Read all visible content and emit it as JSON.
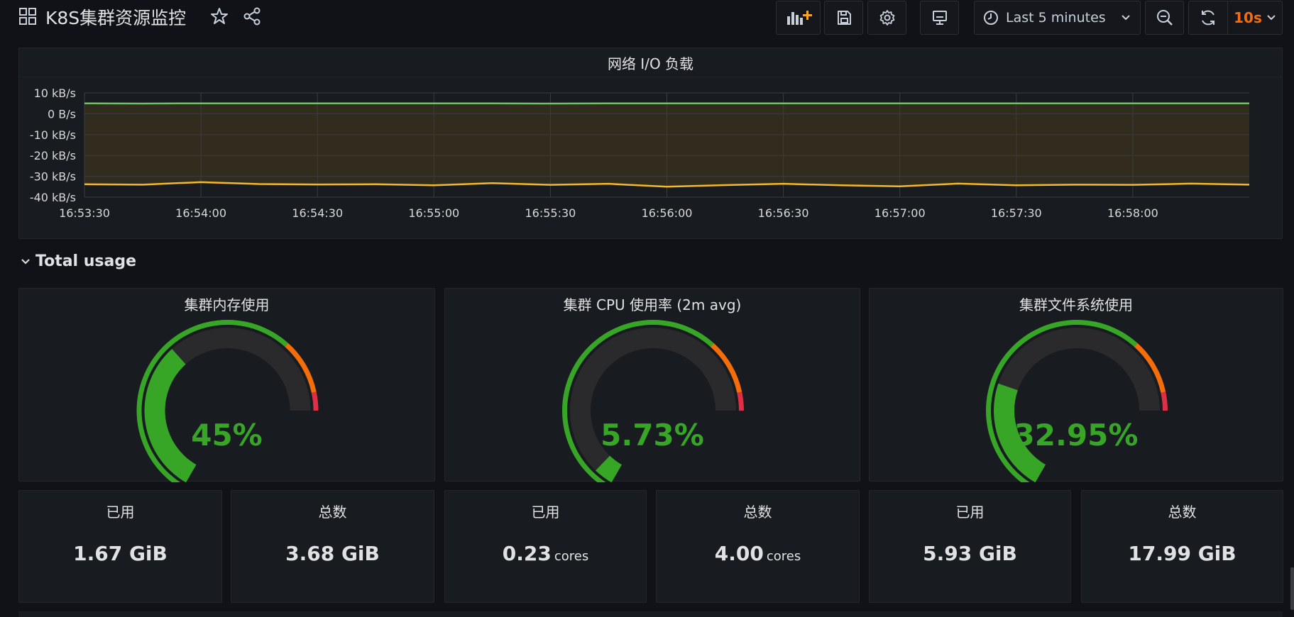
{
  "header": {
    "title": "K8S集群资源监控",
    "time_range": "Last 5 minutes",
    "refresh_interval": "10s"
  },
  "network_panel": {
    "title": "网络 I/O 负载"
  },
  "row": {
    "title": "Total usage"
  },
  "gauges": [
    {
      "title": "集群内存使用",
      "display": "45%",
      "percent": 45
    },
    {
      "title": "集群 CPU 使用率 (2m avg)",
      "display": "5.73%",
      "percent": 5.73
    },
    {
      "title": "集群文件系统使用",
      "display": "32.95%",
      "percent": 32.95
    }
  ],
  "stats": [
    {
      "label": "已用",
      "value": "1.67",
      "unit": "GiB"
    },
    {
      "label": "总数",
      "value": "3.68",
      "unit": "GiB"
    },
    {
      "label": "已用",
      "value": "0.23",
      "unit": "cores"
    },
    {
      "label": "总数",
      "value": "4.00",
      "unit": "cores"
    },
    {
      "label": "已用",
      "value": "5.93",
      "unit": "GiB"
    },
    {
      "label": "总数",
      "value": "17.99",
      "unit": "GiB"
    }
  ],
  "colors": {
    "background": "#111217",
    "panel": "#181b1f",
    "green": "#37a626",
    "series_green": "#73bf69",
    "series_yellow": "#fade2a",
    "orange": "#f56c0b",
    "red": "#e02f44"
  },
  "chart_data": {
    "type": "line",
    "title": "网络 I/O 负载",
    "y_ticks": [
      "10 kB/s",
      "0 B/s",
      "-10 kB/s",
      "-20 kB/s",
      "-30 kB/s",
      "-40 kB/s"
    ],
    "x_ticks": [
      "16:53:30",
      "16:54:00",
      "16:54:30",
      "16:55:00",
      "16:55:30",
      "16:56:00",
      "16:56:30",
      "16:57:00",
      "16:57:30",
      "16:58:00"
    ],
    "ylim": [
      -40,
      10
    ],
    "x": [
      "16:53:30",
      "16:53:45",
      "16:54:00",
      "16:54:15",
      "16:54:30",
      "16:54:45",
      "16:55:00",
      "16:55:15",
      "16:55:30",
      "16:55:45",
      "16:56:00",
      "16:56:15",
      "16:56:30",
      "16:56:45",
      "16:57:00",
      "16:57:15",
      "16:57:30",
      "16:57:45",
      "16:58:00",
      "16:58:15",
      "16:58:30"
    ],
    "series": [
      {
        "color": "#73bf69",
        "values": [
          5,
          4.9,
          5,
          5,
          5,
          5,
          5,
          5,
          4.9,
          5,
          5,
          5,
          5,
          5,
          5,
          5,
          5,
          5,
          5,
          5,
          5
        ]
      },
      {
        "color": "#fade2a",
        "values": [
          -33.8,
          -34,
          -32.8,
          -33.7,
          -33.9,
          -33.8,
          -34.3,
          -33.3,
          -34.1,
          -33.6,
          -35,
          -34.2,
          -33.6,
          -34.3,
          -34.8,
          -33.5,
          -34.3,
          -34,
          -34.1,
          -33.5,
          -34
        ]
      }
    ]
  }
}
